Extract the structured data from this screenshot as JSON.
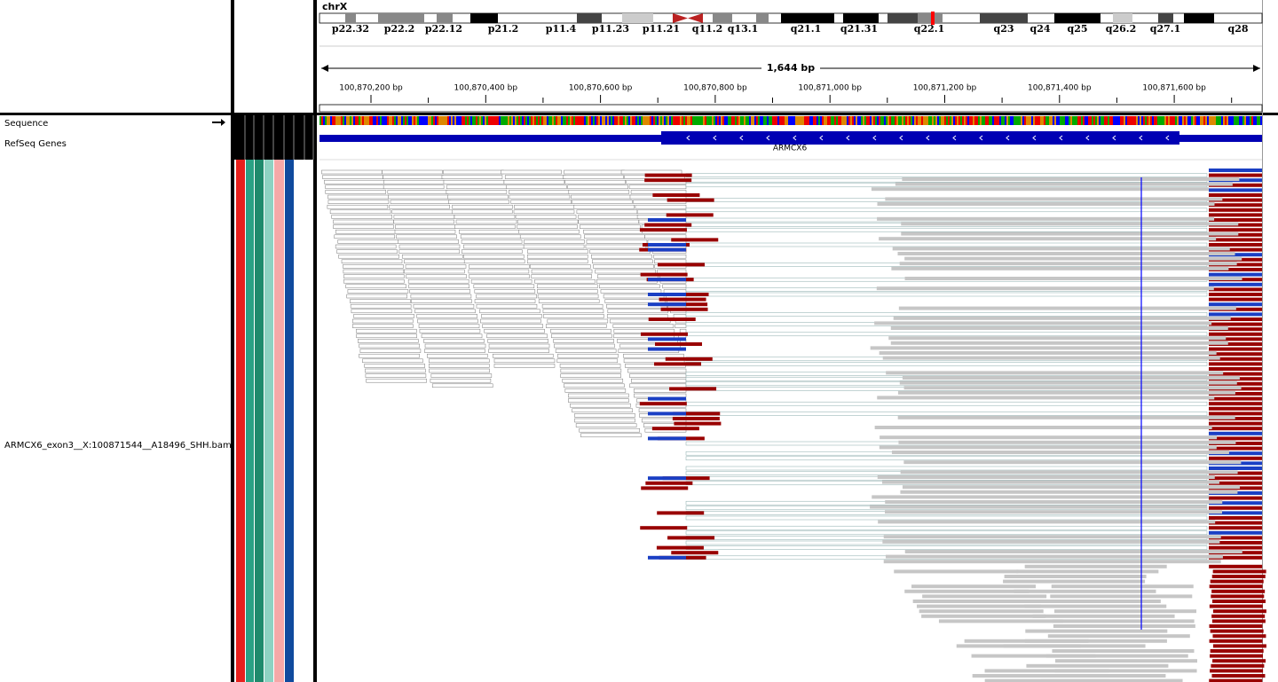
{
  "chromosome": "chrX",
  "bands": [
    "p22.32",
    "p22.2",
    "p22.12",
    "p21.2",
    "p11.4",
    "p11.23",
    "p11.21",
    "q11.2",
    "q13.1",
    "q21.1",
    "q21.31",
    "q22.1",
    "q23",
    "q24",
    "q25",
    "q26.2",
    "q27.1",
    "q28"
  ],
  "ruler": {
    "span": "1,644 bp",
    "ticks": [
      "100,870,200 bp",
      "100,870,400 bp",
      "100,870,600 bp",
      "100,870,800 bp",
      "100,871,000 bp",
      "100,871,200 bp",
      "100,871,400 bp",
      "100,871,600 bp"
    ]
  },
  "tracks": {
    "sequence": "Sequence",
    "genes": "RefSeq Genes",
    "gene_name": "ARMCX6",
    "alignment": "ARMCX6_exon3__X:100871544__A18496_SHH.bam"
  }
}
